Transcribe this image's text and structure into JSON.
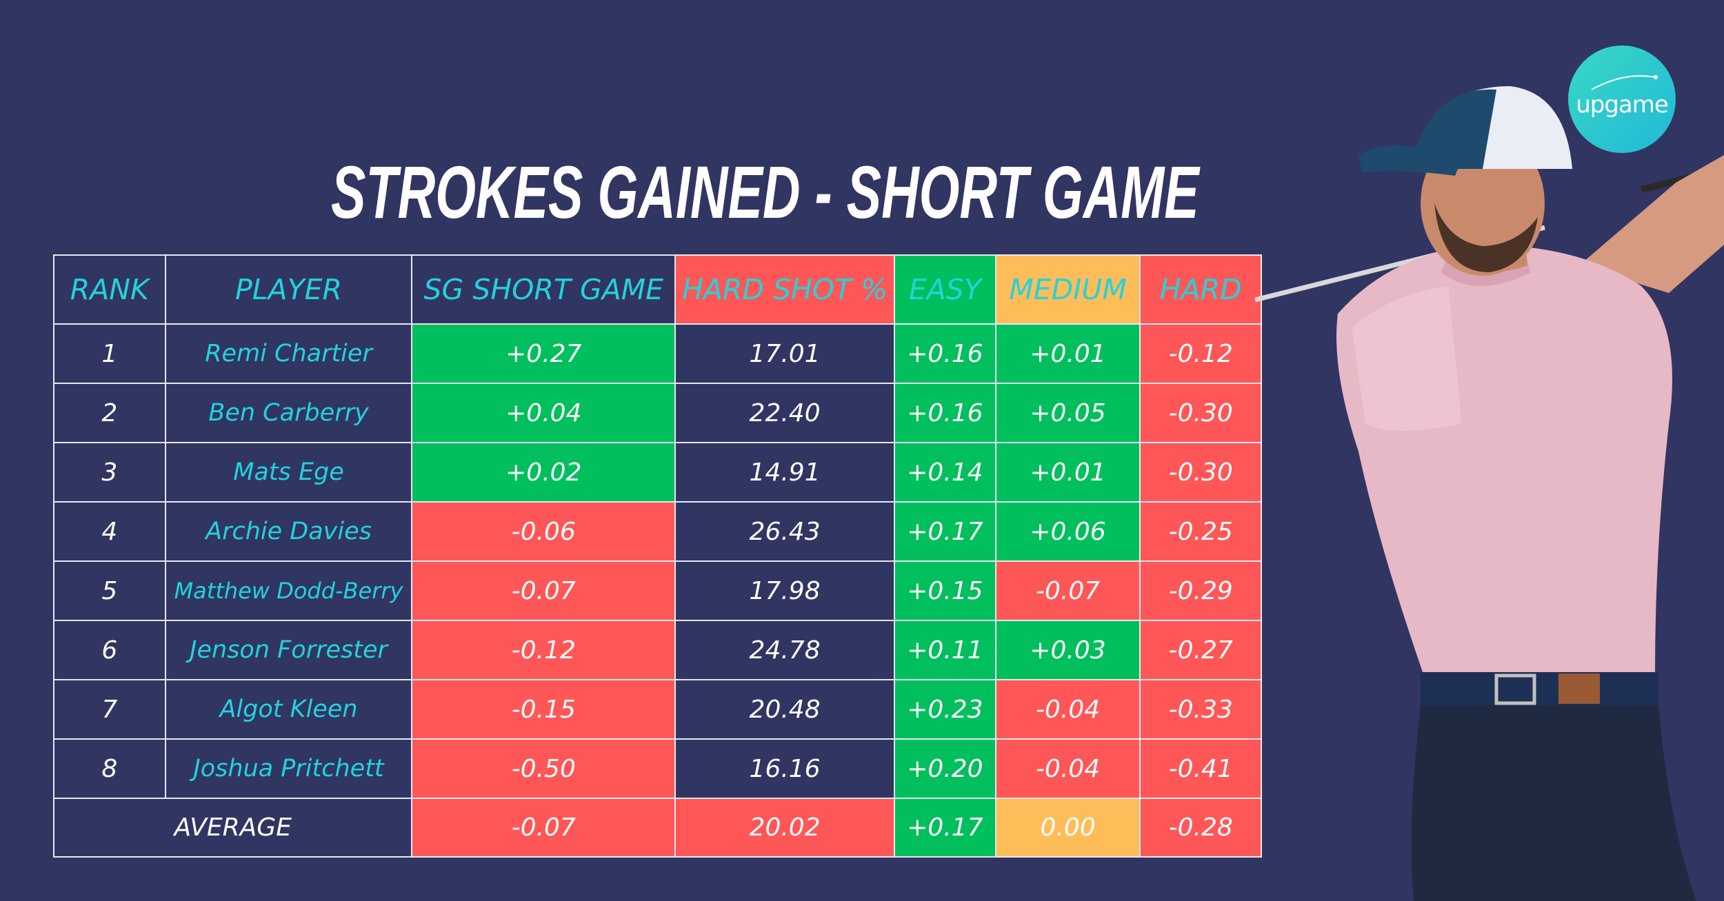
{
  "title": "STROKES GAINED - SHORT GAME",
  "logo": {
    "text": "upgame",
    "color": "#2ec8d0"
  },
  "colors": {
    "background": "#313562",
    "positive": "#00bf5c",
    "negative": "#ff5757",
    "neutral": "#ffbd59",
    "header_text": "#22d3dc"
  },
  "table": {
    "headers": [
      "RANK",
      "PLAYER",
      "SG SHORT GAME",
      "HARD SHOT %",
      "EASY",
      "MEDIUM",
      "HARD"
    ],
    "rows": [
      {
        "rank": "1",
        "player": "Remi Chartier",
        "sg": "+0.27",
        "hard_pct": "17.01",
        "easy": "+0.16",
        "medium": "+0.01",
        "hard": "-0.12"
      },
      {
        "rank": "2",
        "player": "Ben Carberry",
        "sg": "+0.04",
        "hard_pct": "22.40",
        "easy": "+0.16",
        "medium": "+0.05",
        "hard": "-0.30"
      },
      {
        "rank": "3",
        "player": "Mats Ege",
        "sg": "+0.02",
        "hard_pct": "14.91",
        "easy": "+0.14",
        "medium": "+0.01",
        "hard": "-0.30"
      },
      {
        "rank": "4",
        "player": "Archie Davies",
        "sg": "-0.06",
        "hard_pct": "26.43",
        "easy": "+0.17",
        "medium": "+0.06",
        "hard": "-0.25"
      },
      {
        "rank": "5",
        "player": "Matthew Dodd-Berry",
        "sg": "-0.07",
        "hard_pct": "17.98",
        "easy": "+0.15",
        "medium": "-0.07",
        "hard": "-0.29"
      },
      {
        "rank": "6",
        "player": "Jenson Forrester",
        "sg": "-0.12",
        "hard_pct": "24.78",
        "easy": "+0.11",
        "medium": "+0.03",
        "hard": "-0.27"
      },
      {
        "rank": "7",
        "player": "Algot Kleen",
        "sg": "-0.15",
        "hard_pct": "20.48",
        "easy": "+0.23",
        "medium": "-0.04",
        "hard": "-0.33"
      },
      {
        "rank": "8",
        "player": "Joshua Pritchett",
        "sg": "-0.50",
        "hard_pct": "16.16",
        "easy": "+0.20",
        "medium": "-0.04",
        "hard": "-0.41"
      }
    ],
    "average": {
      "label": "AVERAGE",
      "sg": "-0.07",
      "hard_pct": "20.02",
      "easy": "+0.17",
      "medium": "0.00",
      "hard": "-0.28"
    }
  }
}
